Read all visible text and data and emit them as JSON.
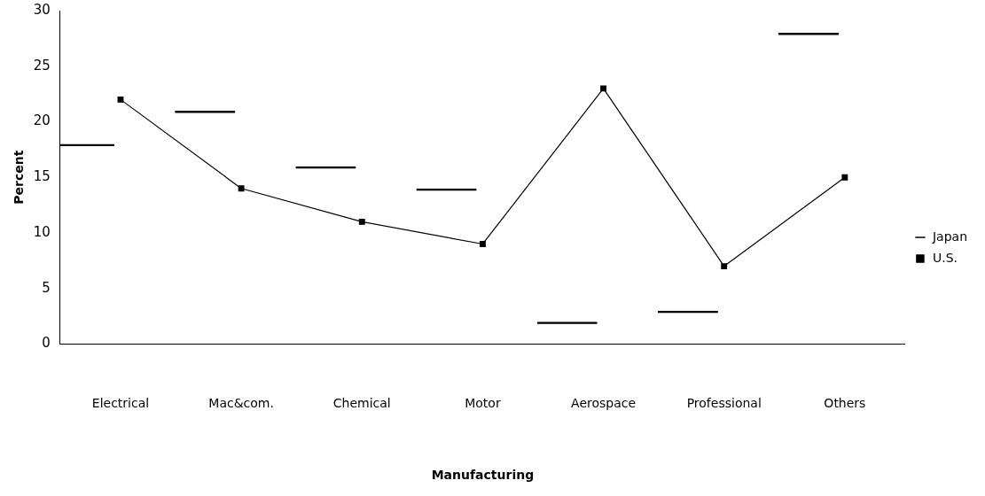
{
  "chart_data": {
    "type": "bar",
    "xlabel": "Manufacturing",
    "ylabel": "Percent",
    "categories": [
      "Electrical",
      "Mac&com.",
      "Chemical",
      "Motor",
      "Aerospace",
      "Professional",
      "Others"
    ],
    "series": [
      {
        "name": "Japan",
        "color": "#000000",
        "values": [
          18,
          21,
          16,
          14,
          2,
          3,
          28
        ]
      },
      {
        "name": "U.S.",
        "type": "line",
        "color": "#000000",
        "values": [
          22,
          14,
          11,
          9,
          23,
          7,
          15
        ]
      }
    ],
    "ylim": [
      0,
      30
    ],
    "yticks": [
      0,
      5,
      10,
      15,
      20,
      25,
      30
    ],
    "grid": false,
    "legend": "right",
    "marker": "square"
  }
}
